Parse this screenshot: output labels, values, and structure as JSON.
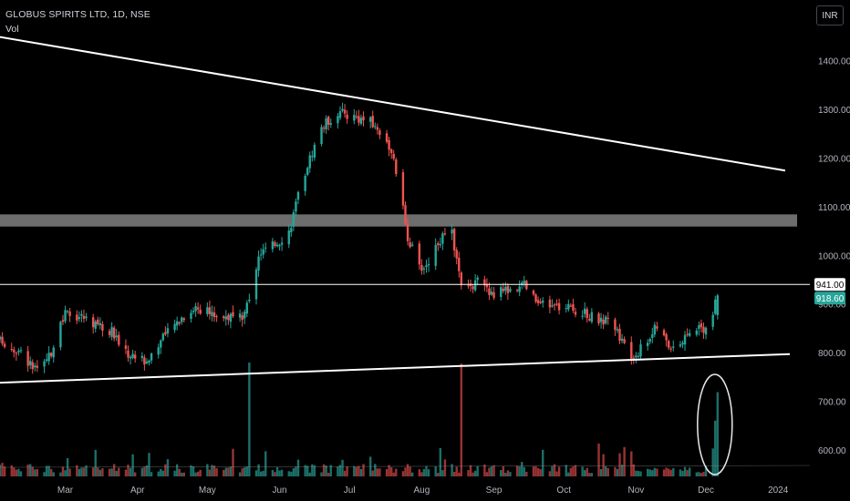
{
  "header": {
    "title": "GLOBUS SPIRITS LTD, 1D, NSE",
    "subtitle": "Vol",
    "currency_button": "INR"
  },
  "price_tags": {
    "level_label": "941.00",
    "last_label": "918.60"
  },
  "colors": {
    "up": "#26a69a",
    "down": "#ef5350",
    "vol_up": "#1e7b73",
    "vol_down": "#a8383a",
    "line": "#ffffff",
    "zone": "#808080",
    "last_tag": "#26a69a",
    "background": "#000000"
  },
  "chart_data": {
    "type": "candlestick",
    "y_axis": {
      "range": [
        540,
        1490
      ],
      "ticks": [
        "1400.00",
        "1300.00",
        "1200.00",
        "1100.00",
        "1000.00",
        "900.00",
        "800.00",
        "700.00",
        "600.00"
      ],
      "tick_values": [
        1400,
        1300,
        1200,
        1100,
        1000,
        900,
        800,
        700,
        600
      ]
    },
    "x_axis": {
      "labels": [
        "Mar",
        "Apr",
        "May",
        "Jun",
        "Jul",
        "Aug",
        "Sep",
        "Oct",
        "Nov",
        "Dec",
        "2024"
      ],
      "label_dates": [
        "2023-03-01",
        "2023-04-01",
        "2023-05-01",
        "2023-06-01",
        "2023-07-01",
        "2023-08-01",
        "2023-09-01",
        "2023-10-01",
        "2023-11-01",
        "2023-12-01",
        "2024-01-01"
      ],
      "range": [
        "2023-02-01",
        "2024-01-06"
      ]
    },
    "series_anchors": [
      [
        "2023-02-01",
        825
      ],
      [
        "2023-02-10",
        800
      ],
      [
        "2023-02-17",
        760
      ],
      [
        "2023-02-22",
        790
      ],
      [
        "2023-03-01",
        880
      ],
      [
        "2023-03-08",
        875
      ],
      [
        "2023-03-15",
        860
      ],
      [
        "2023-03-22",
        840
      ],
      [
        "2023-03-27",
        800
      ],
      [
        "2023-04-05",
        785
      ],
      [
        "2023-04-12",
        830
      ],
      [
        "2023-04-19",
        870
      ],
      [
        "2023-04-26",
        895
      ],
      [
        "2023-05-03",
        880
      ],
      [
        "2023-05-10",
        875
      ],
      [
        "2023-05-16",
        870
      ],
      [
        "2023-05-19",
        905
      ],
      [
        "2023-05-23",
        1005
      ],
      [
        "2023-05-29",
        1020
      ],
      [
        "2023-06-05",
        1050
      ],
      [
        "2023-06-12",
        1175
      ],
      [
        "2023-06-19",
        1265
      ],
      [
        "2023-06-26",
        1295
      ],
      [
        "2023-07-04",
        1285
      ],
      [
        "2023-07-10",
        1275
      ],
      [
        "2023-07-17",
        1240
      ],
      [
        "2023-07-21",
        1175
      ],
      [
        "2023-07-26",
        1040
      ],
      [
        "2023-07-31",
        975
      ],
      [
        "2023-08-03",
        980
      ],
      [
        "2023-08-08",
        1030
      ],
      [
        "2023-08-14",
        1045
      ],
      [
        "2023-08-18",
        935
      ],
      [
        "2023-08-25",
        945
      ],
      [
        "2023-08-30",
        920
      ],
      [
        "2023-09-06",
        930
      ],
      [
        "2023-09-14",
        940
      ],
      [
        "2023-09-20",
        900
      ],
      [
        "2023-09-28",
        895
      ],
      [
        "2023-10-05",
        890
      ],
      [
        "2023-10-13",
        875
      ],
      [
        "2023-10-19",
        865
      ],
      [
        "2023-10-24",
        845
      ],
      [
        "2023-10-30",
        790
      ],
      [
        "2023-11-03",
        810
      ],
      [
        "2023-11-10",
        855
      ],
      [
        "2023-11-15",
        815
      ],
      [
        "2023-11-21",
        825
      ],
      [
        "2023-11-27",
        855
      ],
      [
        "2023-12-01",
        850
      ],
      [
        "2023-12-04",
        880
      ],
      [
        "2023-12-06",
        918.6
      ]
    ],
    "volume_spikes": [
      {
        "date": "2023-05-19",
        "value": 1.0,
        "dir": "up"
      },
      {
        "date": "2023-08-18",
        "value": 0.99,
        "dir": "down"
      },
      {
        "date": "2023-12-05",
        "value": 0.49,
        "dir": "up"
      },
      {
        "date": "2023-12-06",
        "value": 0.74,
        "dir": "up"
      }
    ],
    "overlays": {
      "descending_trendline": {
        "from": [
          "2023-01-25",
          1455
        ],
        "to": [
          "2024-01-04",
          1175
        ]
      },
      "ascending_trendline": {
        "from": [
          "2023-01-25",
          738
        ],
        "to": [
          "2024-01-06",
          798
        ]
      },
      "horizontal_level": 941,
      "resistance_zone": [
        1060,
        1085
      ],
      "volume_highlight": "ellipse around final two volume bars"
    },
    "last_price": 918.6
  }
}
